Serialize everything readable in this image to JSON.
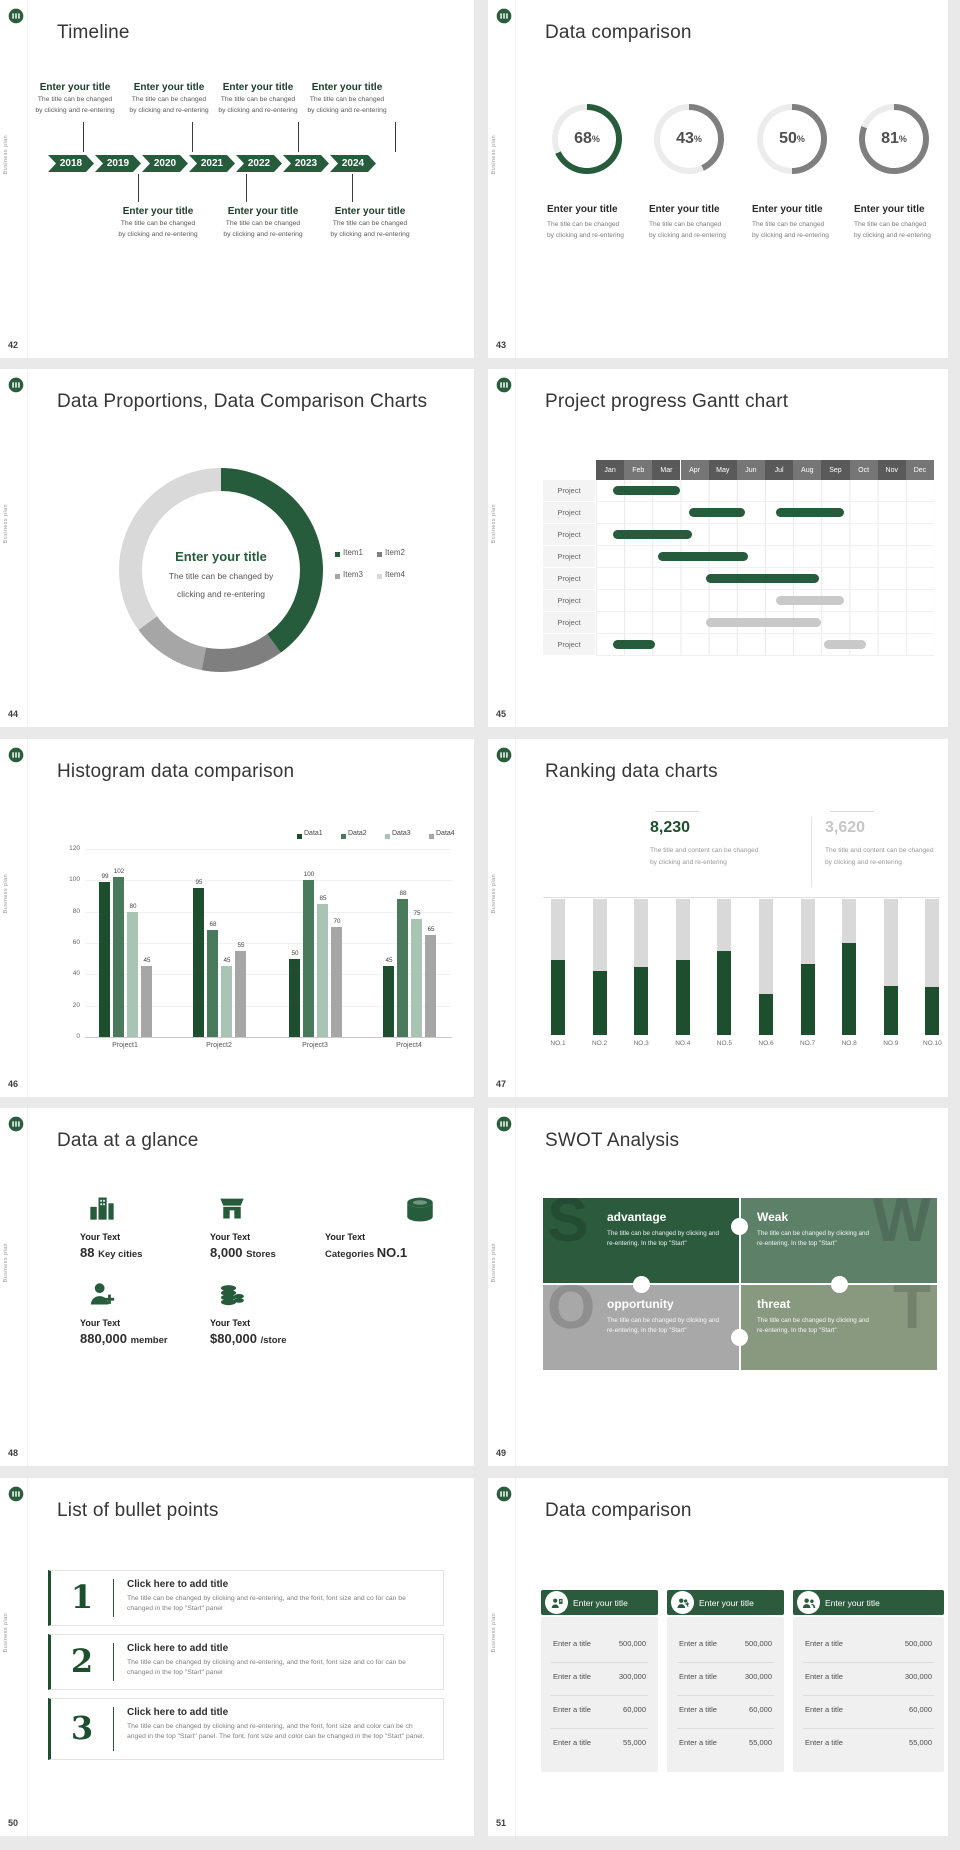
{
  "frame": {
    "side_text": "Business plan"
  },
  "palette": {
    "green": "#265c3b",
    "green_dark": "#1d4f2e",
    "green_mid": "#4a7a5c",
    "green_pale": "#a9c4b2",
    "gray": "#a6a6a6",
    "gray_light": "#d9d9d9",
    "track": "#ececec",
    "text_dark": "#333333",
    "text_gray": "#7f7f7f"
  },
  "slides": {
    "s42": {
      "number": "42",
      "title": "Timeline",
      "block_title": "Enter your title",
      "block_desc_line1": "The title can be changed",
      "block_desc_line2": "by clicking and re-entering",
      "years": [
        "2018",
        "2019",
        "2020",
        "2021",
        "2022",
        "2023",
        "2024"
      ]
    },
    "s43": {
      "number": "43",
      "title": "Data comparison",
      "item_title": "Enter your title",
      "item_desc_line1": "The title can be changed",
      "item_desc_line2": "by clicking and re-entering",
      "rings": [
        {
          "label": "68",
          "percent": 68,
          "color": "#265c3b"
        },
        {
          "label": "43",
          "percent": 43,
          "color": "#7f7f7f"
        },
        {
          "label": "50",
          "percent": 50,
          "color": "#7f7f7f"
        },
        {
          "label": "81",
          "percent": 81,
          "color": "#7f7f7f"
        }
      ]
    },
    "s44": {
      "number": "44",
      "title": "Data Proportions, Data Comparison Charts",
      "center_title": "Enter your title",
      "center_desc_line1": "The title can be changed by",
      "center_desc_line2": "clicking and re-entering",
      "legend": [
        {
          "label": "Item1",
          "color": "#265c3b"
        },
        {
          "label": "Item2",
          "color": "#7f7f7f"
        },
        {
          "label": "Item3",
          "color": "#a6a6a6"
        },
        {
          "label": "Item4",
          "color": "#d9d9d9"
        }
      ],
      "values": [
        40,
        13,
        12,
        35
      ]
    },
    "s45": {
      "number": "45",
      "title": "Project progress Gantt chart",
      "months": [
        "Jan",
        "Feb",
        "Mar",
        "Apr",
        "May",
        "Jun",
        "Jul",
        "Aug",
        "Sep",
        "Oct",
        "Nov",
        "Dec"
      ],
      "row_label": "Project",
      "bars": [
        [
          {
            "start": 0.6,
            "end": 3.0,
            "color": "green"
          }
        ],
        [
          {
            "start": 3.3,
            "end": 5.3,
            "color": "green"
          },
          {
            "start": 6.4,
            "end": 8.8,
            "color": "green"
          }
        ],
        [
          {
            "start": 0.6,
            "end": 3.4,
            "color": "green"
          }
        ],
        [
          {
            "start": 2.2,
            "end": 5.4,
            "color": "green"
          }
        ],
        [
          {
            "start": 3.9,
            "end": 7.9,
            "color": "green"
          }
        ],
        [
          {
            "start": 6.4,
            "end": 8.8,
            "color": "gray"
          }
        ],
        [
          {
            "start": 3.9,
            "end": 8.0,
            "color": "gray"
          }
        ],
        [
          {
            "start": 0.6,
            "end": 2.1,
            "color": "green"
          },
          {
            "start": 8.1,
            "end": 9.6,
            "color": "gray"
          }
        ]
      ]
    },
    "s46": {
      "number": "46",
      "title": "Histogram data comparison",
      "legend": [
        "Data1",
        "Data2",
        "Data3",
        "Data4"
      ],
      "series_colors": [
        "#1d4f2e",
        "#4a7a5c",
        "#a9c4b2",
        "#a6a6a6"
      ],
      "yticks": [
        0,
        20,
        40,
        60,
        80,
        100,
        120
      ],
      "groups": [
        {
          "label": "Project1",
          "values": [
            99,
            102,
            80,
            45
          ]
        },
        {
          "label": "Project2",
          "values": [
            95,
            68,
            45,
            55
          ]
        },
        {
          "label": "Project3",
          "values": [
            50,
            100,
            85,
            70
          ]
        },
        {
          "label": "Project4",
          "values": [
            45,
            88,
            75,
            65
          ]
        }
      ]
    },
    "s47": {
      "number": "47",
      "title": "Ranking data charts",
      "stats": [
        {
          "value": "8,230",
          "color": "#1d4f2e",
          "desc_line1": "The title and content can be changed",
          "desc_line2": "by clicking and re-entering"
        },
        {
          "value": "3,620",
          "color": "#c6c6c6",
          "desc_line1": "The title and content can be changed",
          "desc_line2": "by clicking and re-entering"
        }
      ],
      "categories": [
        "NO.1",
        "NO.2",
        "NO.3",
        "NO.4",
        "NO.5",
        "NO.6",
        "NO.7",
        "NO.8",
        "NO.9",
        "NO.10"
      ],
      "values": [
        55,
        47,
        50,
        55,
        62,
        30,
        52,
        68,
        36,
        35
      ]
    },
    "s48": {
      "number": "48",
      "title": "Data at a glance",
      "label": "Your Text",
      "stats": [
        {
          "icon": "building-icon",
          "value": "88",
          "unit": "Key cities"
        },
        {
          "icon": "store-icon",
          "value": "8,000",
          "unit": "Stores"
        },
        {
          "icon": "database-icon",
          "prefix": "Categories",
          "value": "NO.1"
        },
        {
          "icon": "member-add-icon",
          "value": "880,000",
          "unit": "member"
        },
        {
          "icon": "coins-icon",
          "value": "$80,000",
          "unit": "/store"
        }
      ]
    },
    "s49": {
      "number": "49",
      "title": "SWOT Analysis",
      "desc": "The title can be changed by clicking and re-entering. In the top \"Start\"",
      "blocks": [
        {
          "letter": "S",
          "title": "advantage",
          "color": "#2b5a3d",
          "side": "left"
        },
        {
          "letter": "W",
          "title": "Weak",
          "color": "#5d8069",
          "side": "right"
        },
        {
          "letter": "O",
          "title": "opportunity",
          "color": "#a8a8a8",
          "side": "left"
        },
        {
          "letter": "T",
          "title": "threat",
          "color": "#88997f",
          "side": "right"
        }
      ]
    },
    "s50": {
      "number": "50",
      "title": "List of bullet points",
      "items": [
        {
          "num": "1",
          "title": "Click here to add title",
          "desc": "The title can be changed by clicking and re-entering, and the font, font size and co for can be changed in the top \"Start\" panel"
        },
        {
          "num": "2",
          "title": "Click here to add title",
          "desc": "The title can be changed by clicking and re-entering, and the font, font size and co for can be changed in the top \"Start\" panel"
        },
        {
          "num": "3",
          "title": "Click here to add title",
          "desc": "The title can be changed by clicking and re-entering, and the font, font size and color can be ch anged in the top \"Start\" panel. The font, font size and color can be changed in the top \"Start\" panel."
        }
      ]
    },
    "s51": {
      "number": "51",
      "title": "Data comparison",
      "card_title": "Enter your title",
      "row_label": "Enter a title",
      "cards": [
        {
          "icon": "person-doc-icon",
          "rows": [
            "500,000",
            "300,000",
            "60,000",
            "55,000"
          ]
        },
        {
          "icon": "people-plus-icon",
          "rows": [
            "500,000",
            "300,000",
            "60,000",
            "55,000"
          ]
        },
        {
          "icon": "people-icon",
          "rows": [
            "500,000",
            "300,000",
            "60,000",
            "55,000"
          ]
        }
      ]
    }
  },
  "chart_data": [
    {
      "slide": "43",
      "type": "donut",
      "title": "Data comparison",
      "series": [
        {
          "name": "Enter your title",
          "value": 68
        },
        {
          "name": "Enter your title",
          "value": 43
        },
        {
          "name": "Enter your title",
          "value": 50
        },
        {
          "name": "Enter your title",
          "value": 81
        }
      ],
      "unit": "%"
    },
    {
      "slide": "44",
      "type": "pie",
      "title": "Data Proportions, Data Comparison Charts",
      "labels": [
        "Item1",
        "Item2",
        "Item3",
        "Item4"
      ],
      "values": [
        40,
        13,
        12,
        35
      ],
      "legend_position": "right",
      "center_text": "Enter your title"
    },
    {
      "slide": "45",
      "type": "gantt",
      "title": "Project progress Gantt chart",
      "x": [
        "Jan",
        "Feb",
        "Mar",
        "Apr",
        "May",
        "Jun",
        "Jul",
        "Aug",
        "Sep",
        "Oct",
        "Nov",
        "Dec"
      ],
      "rows": [
        {
          "name": "Project",
          "spans": [
            [
              0.6,
              3.0
            ]
          ]
        },
        {
          "name": "Project",
          "spans": [
            [
              3.3,
              5.3
            ],
            [
              6.4,
              8.8
            ]
          ]
        },
        {
          "name": "Project",
          "spans": [
            [
              0.6,
              3.4
            ]
          ]
        },
        {
          "name": "Project",
          "spans": [
            [
              2.2,
              5.4
            ]
          ]
        },
        {
          "name": "Project",
          "spans": [
            [
              3.9,
              7.9
            ]
          ]
        },
        {
          "name": "Project",
          "spans": [
            [
              6.4,
              8.8
            ]
          ]
        },
        {
          "name": "Project",
          "spans": [
            [
              3.9,
              8.0
            ]
          ]
        },
        {
          "name": "Project",
          "spans": [
            [
              0.6,
              2.1
            ],
            [
              8.1,
              9.6
            ]
          ]
        }
      ]
    },
    {
      "slide": "46",
      "type": "bar",
      "title": "Histogram data comparison",
      "categories": [
        "Project1",
        "Project2",
        "Project3",
        "Project4"
      ],
      "series": [
        {
          "name": "Data1",
          "values": [
            99,
            95,
            50,
            45
          ]
        },
        {
          "name": "Data2",
          "values": [
            102,
            68,
            100,
            88
          ]
        },
        {
          "name": "Data3",
          "values": [
            80,
            45,
            85,
            75
          ]
        },
        {
          "name": "Data4",
          "values": [
            45,
            55,
            70,
            65
          ]
        }
      ],
      "ylim": [
        0,
        120
      ],
      "yticks": [
        0,
        20,
        40,
        60,
        80,
        100,
        120
      ],
      "legend_position": "top-right"
    },
    {
      "slide": "47",
      "type": "bar",
      "title": "Ranking data charts",
      "categories": [
        "NO.1",
        "NO.2",
        "NO.3",
        "NO.4",
        "NO.5",
        "NO.6",
        "NO.7",
        "NO.8",
        "NO.9",
        "NO.10"
      ],
      "values": [
        55,
        47,
        50,
        55,
        62,
        30,
        52,
        68,
        36,
        35
      ],
      "ylim": [
        0,
        100
      ],
      "annotations": [
        "8,230",
        "3,620"
      ]
    }
  ]
}
